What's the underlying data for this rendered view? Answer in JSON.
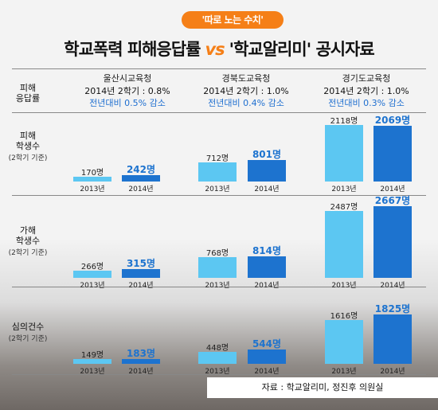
{
  "header": {
    "badge": "'따로 노는 수치'",
    "title_part1": "학교폭력 피해응답률",
    "vs": "vs",
    "title_part2": "'학교알리미' 공시자료"
  },
  "row_labels": {
    "response_rate": "피해\n응답률",
    "victims": "피해\n학생수",
    "victims_sub": "(2학기 기준)",
    "offenders": "가해\n학생수",
    "offenders_sub": "(2학기 기준)",
    "deliberations": "심의건수",
    "deliberations_sub": "(2학기 기준)"
  },
  "districts": [
    {
      "name": "울산시교육청",
      "rate": "2014년 2학기 : 0.8%",
      "change": "전년대비 0.5% 감소"
    },
    {
      "name": "경북도교육청",
      "rate": "2014년 2학기 : 1.0%",
      "change": "전년대비 0.4% 감소"
    },
    {
      "name": "경기도교육청",
      "rate": "2014년 2학기 : 1.0%",
      "change": "전년대비 0.3% 감소"
    }
  ],
  "source": "자료 : 학교알리미, 정진후 의원실",
  "colors": {
    "y2013": "#5cc7f2",
    "y2014": "#1d73cf",
    "accent": "#f57f17"
  },
  "chart_data": {
    "type": "bar",
    "categories": [
      "2013년",
      "2014년"
    ],
    "panels": [
      {
        "row": "피해 학생수",
        "district": "울산시교육청",
        "values": [
          170,
          242
        ],
        "labels": [
          "170명",
          "242명"
        ]
      },
      {
        "row": "피해 학생수",
        "district": "경북도교육청",
        "values": [
          712,
          801
        ],
        "labels": [
          "712명",
          "801명"
        ]
      },
      {
        "row": "피해 학생수",
        "district": "경기도교육청",
        "values": [
          2118,
          2069
        ],
        "labels": [
          "2118명",
          "2069명"
        ]
      },
      {
        "row": "가해 학생수",
        "district": "울산시교육청",
        "values": [
          266,
          315
        ],
        "labels": [
          "266명",
          "315명"
        ]
      },
      {
        "row": "가해 학생수",
        "district": "경북도교육청",
        "values": [
          768,
          814
        ],
        "labels": [
          "768명",
          "814명"
        ]
      },
      {
        "row": "가해 학생수",
        "district": "경기도교육청",
        "values": [
          2487,
          2667
        ],
        "labels": [
          "2487명",
          "2667명"
        ]
      },
      {
        "row": "심의건수",
        "district": "울산시교육청",
        "values": [
          149,
          183
        ],
        "labels": [
          "149명",
          "183명"
        ]
      },
      {
        "row": "심의건수",
        "district": "경북도교육청",
        "values": [
          448,
          544
        ],
        "labels": [
          "448명",
          "544명"
        ]
      },
      {
        "row": "심의건수",
        "district": "경기도교육청",
        "values": [
          1616,
          1825
        ],
        "labels": [
          "1616명",
          "1825명"
        ]
      }
    ]
  }
}
